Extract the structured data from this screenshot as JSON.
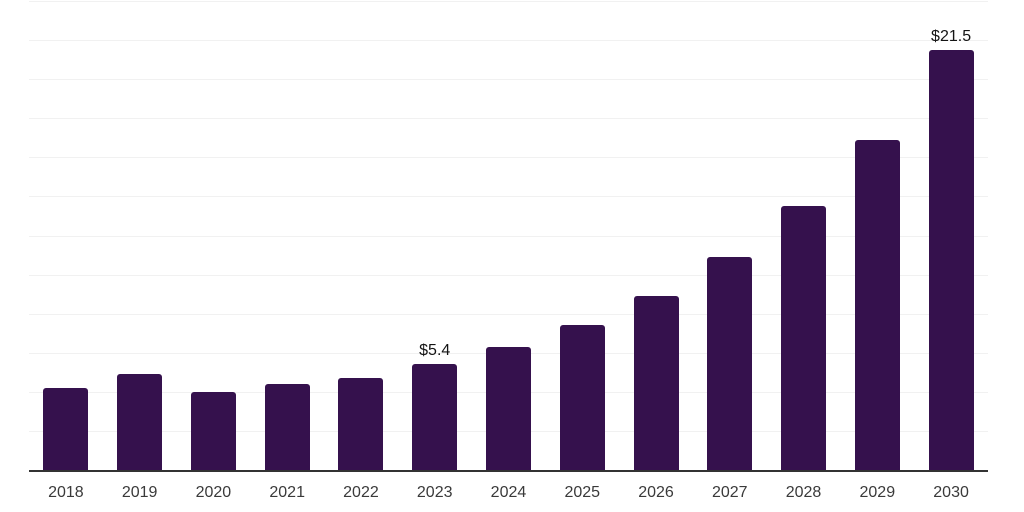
{
  "chart_data": {
    "type": "bar",
    "title": "",
    "xlabel": "",
    "ylabel": "",
    "categories": [
      "2018",
      "2019",
      "2020",
      "2021",
      "2022",
      "2023",
      "2024",
      "2025",
      "2026",
      "2027",
      "2028",
      "2029",
      "2030"
    ],
    "values": [
      4.2,
      4.9,
      4.0,
      4.4,
      4.7,
      5.4,
      6.3,
      7.4,
      8.9,
      10.9,
      13.5,
      16.9,
      21.5
    ],
    "data_labels": [
      "",
      "",
      "",
      "",
      "",
      "$5.4",
      "",
      "",
      "",
      "",
      "",
      "",
      "$21.5"
    ],
    "ylim": [
      0,
      24
    ],
    "gridline_step": 2,
    "grid": "horizontal-only",
    "legend": "none",
    "y_tick_labels_visible": false,
    "colors": {
      "bar": "#35114D",
      "gridline": "#F1F1F1",
      "axis_line": "#333333",
      "tick_label": "#3A3A3A",
      "data_label": "#141414",
      "background": "#FFFFFF"
    }
  }
}
